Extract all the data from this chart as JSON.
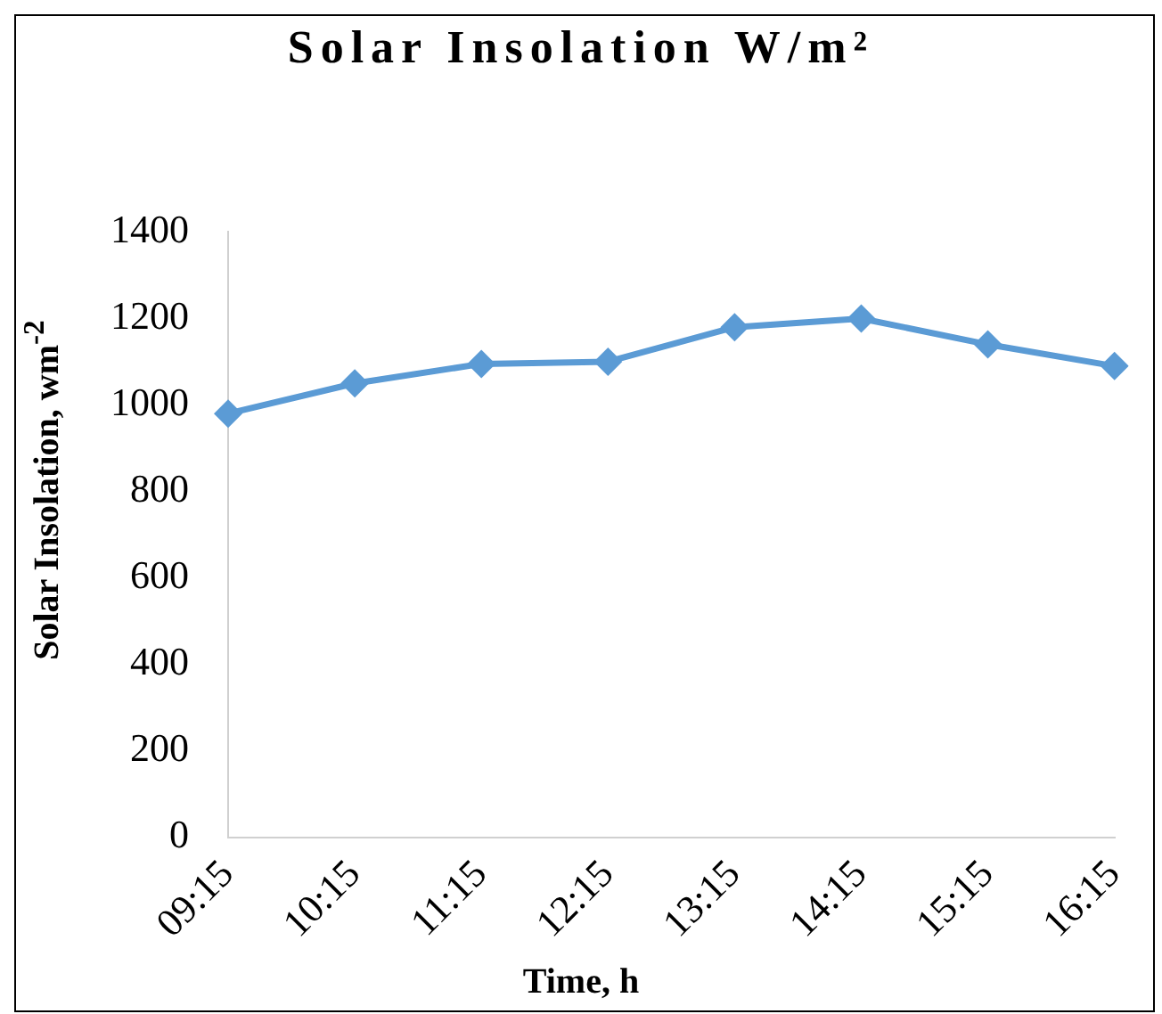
{
  "chart_data": {
    "type": "line",
    "title": "Solar Insolation W/m²",
    "xlabel": "Time, h",
    "ylabel": "Solar Insolation, wm$^{-2}$",
    "categories": [
      "09:15",
      "10:15",
      "11:15",
      "12:15",
      "13:15",
      "14:15",
      "15:15",
      "16:15"
    ],
    "series": [
      {
        "color": "#5b9bd5",
        "values": [
          980,
          1050,
          1095,
          1100,
          1180,
          1200,
          1140,
          1090
        ]
      }
    ],
    "ylim": [
      0,
      1400
    ],
    "yticks": [
      0,
      200,
      400,
      600,
      800,
      1000,
      1200,
      1400
    ],
    "grid": false,
    "legend": false,
    "marker": "diamond",
    "line_style": "solid"
  }
}
